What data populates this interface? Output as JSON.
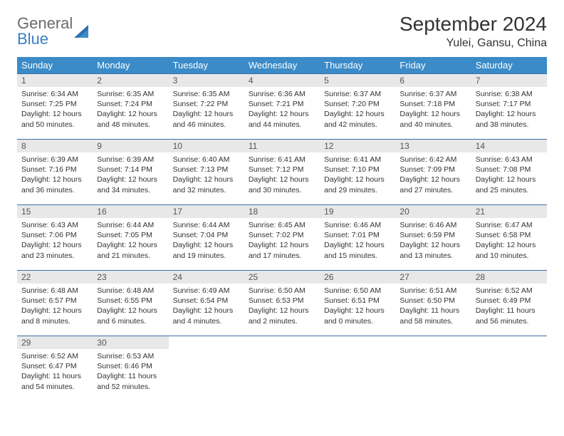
{
  "brand": {
    "general": "General",
    "blue": "Blue"
  },
  "title": "September 2024",
  "location": "Yulei, Gansu, China",
  "colors": {
    "header_bg": "#3b8bc8",
    "header_text": "#ffffff",
    "row_border": "#3b6fa0",
    "daynum_bg": "#e8e8e8",
    "logo_gray": "#6b6b6b",
    "logo_blue": "#3b7fc4",
    "body_text": "#333333"
  },
  "weekdays": [
    "Sunday",
    "Monday",
    "Tuesday",
    "Wednesday",
    "Thursday",
    "Friday",
    "Saturday"
  ],
  "weeks": [
    [
      {
        "n": "1",
        "sr": "Sunrise: 6:34 AM",
        "ss": "Sunset: 7:25 PM",
        "d1": "Daylight: 12 hours",
        "d2": "and 50 minutes."
      },
      {
        "n": "2",
        "sr": "Sunrise: 6:35 AM",
        "ss": "Sunset: 7:24 PM",
        "d1": "Daylight: 12 hours",
        "d2": "and 48 minutes."
      },
      {
        "n": "3",
        "sr": "Sunrise: 6:35 AM",
        "ss": "Sunset: 7:22 PM",
        "d1": "Daylight: 12 hours",
        "d2": "and 46 minutes."
      },
      {
        "n": "4",
        "sr": "Sunrise: 6:36 AM",
        "ss": "Sunset: 7:21 PM",
        "d1": "Daylight: 12 hours",
        "d2": "and 44 minutes."
      },
      {
        "n": "5",
        "sr": "Sunrise: 6:37 AM",
        "ss": "Sunset: 7:20 PM",
        "d1": "Daylight: 12 hours",
        "d2": "and 42 minutes."
      },
      {
        "n": "6",
        "sr": "Sunrise: 6:37 AM",
        "ss": "Sunset: 7:18 PM",
        "d1": "Daylight: 12 hours",
        "d2": "and 40 minutes."
      },
      {
        "n": "7",
        "sr": "Sunrise: 6:38 AM",
        "ss": "Sunset: 7:17 PM",
        "d1": "Daylight: 12 hours",
        "d2": "and 38 minutes."
      }
    ],
    [
      {
        "n": "8",
        "sr": "Sunrise: 6:39 AM",
        "ss": "Sunset: 7:16 PM",
        "d1": "Daylight: 12 hours",
        "d2": "and 36 minutes."
      },
      {
        "n": "9",
        "sr": "Sunrise: 6:39 AM",
        "ss": "Sunset: 7:14 PM",
        "d1": "Daylight: 12 hours",
        "d2": "and 34 minutes."
      },
      {
        "n": "10",
        "sr": "Sunrise: 6:40 AM",
        "ss": "Sunset: 7:13 PM",
        "d1": "Daylight: 12 hours",
        "d2": "and 32 minutes."
      },
      {
        "n": "11",
        "sr": "Sunrise: 6:41 AM",
        "ss": "Sunset: 7:12 PM",
        "d1": "Daylight: 12 hours",
        "d2": "and 30 minutes."
      },
      {
        "n": "12",
        "sr": "Sunrise: 6:41 AM",
        "ss": "Sunset: 7:10 PM",
        "d1": "Daylight: 12 hours",
        "d2": "and 29 minutes."
      },
      {
        "n": "13",
        "sr": "Sunrise: 6:42 AM",
        "ss": "Sunset: 7:09 PM",
        "d1": "Daylight: 12 hours",
        "d2": "and 27 minutes."
      },
      {
        "n": "14",
        "sr": "Sunrise: 6:43 AM",
        "ss": "Sunset: 7:08 PM",
        "d1": "Daylight: 12 hours",
        "d2": "and 25 minutes."
      }
    ],
    [
      {
        "n": "15",
        "sr": "Sunrise: 6:43 AM",
        "ss": "Sunset: 7:06 PM",
        "d1": "Daylight: 12 hours",
        "d2": "and 23 minutes."
      },
      {
        "n": "16",
        "sr": "Sunrise: 6:44 AM",
        "ss": "Sunset: 7:05 PM",
        "d1": "Daylight: 12 hours",
        "d2": "and 21 minutes."
      },
      {
        "n": "17",
        "sr": "Sunrise: 6:44 AM",
        "ss": "Sunset: 7:04 PM",
        "d1": "Daylight: 12 hours",
        "d2": "and 19 minutes."
      },
      {
        "n": "18",
        "sr": "Sunrise: 6:45 AM",
        "ss": "Sunset: 7:02 PM",
        "d1": "Daylight: 12 hours",
        "d2": "and 17 minutes."
      },
      {
        "n": "19",
        "sr": "Sunrise: 6:46 AM",
        "ss": "Sunset: 7:01 PM",
        "d1": "Daylight: 12 hours",
        "d2": "and 15 minutes."
      },
      {
        "n": "20",
        "sr": "Sunrise: 6:46 AM",
        "ss": "Sunset: 6:59 PM",
        "d1": "Daylight: 12 hours",
        "d2": "and 13 minutes."
      },
      {
        "n": "21",
        "sr": "Sunrise: 6:47 AM",
        "ss": "Sunset: 6:58 PM",
        "d1": "Daylight: 12 hours",
        "d2": "and 10 minutes."
      }
    ],
    [
      {
        "n": "22",
        "sr": "Sunrise: 6:48 AM",
        "ss": "Sunset: 6:57 PM",
        "d1": "Daylight: 12 hours",
        "d2": "and 8 minutes."
      },
      {
        "n": "23",
        "sr": "Sunrise: 6:48 AM",
        "ss": "Sunset: 6:55 PM",
        "d1": "Daylight: 12 hours",
        "d2": "and 6 minutes."
      },
      {
        "n": "24",
        "sr": "Sunrise: 6:49 AM",
        "ss": "Sunset: 6:54 PM",
        "d1": "Daylight: 12 hours",
        "d2": "and 4 minutes."
      },
      {
        "n": "25",
        "sr": "Sunrise: 6:50 AM",
        "ss": "Sunset: 6:53 PM",
        "d1": "Daylight: 12 hours",
        "d2": "and 2 minutes."
      },
      {
        "n": "26",
        "sr": "Sunrise: 6:50 AM",
        "ss": "Sunset: 6:51 PM",
        "d1": "Daylight: 12 hours",
        "d2": "and 0 minutes."
      },
      {
        "n": "27",
        "sr": "Sunrise: 6:51 AM",
        "ss": "Sunset: 6:50 PM",
        "d1": "Daylight: 11 hours",
        "d2": "and 58 minutes."
      },
      {
        "n": "28",
        "sr": "Sunrise: 6:52 AM",
        "ss": "Sunset: 6:49 PM",
        "d1": "Daylight: 11 hours",
        "d2": "and 56 minutes."
      }
    ],
    [
      {
        "n": "29",
        "sr": "Sunrise: 6:52 AM",
        "ss": "Sunset: 6:47 PM",
        "d1": "Daylight: 11 hours",
        "d2": "and 54 minutes."
      },
      {
        "n": "30",
        "sr": "Sunrise: 6:53 AM",
        "ss": "Sunset: 6:46 PM",
        "d1": "Daylight: 11 hours",
        "d2": "and 52 minutes."
      },
      null,
      null,
      null,
      null,
      null
    ]
  ]
}
